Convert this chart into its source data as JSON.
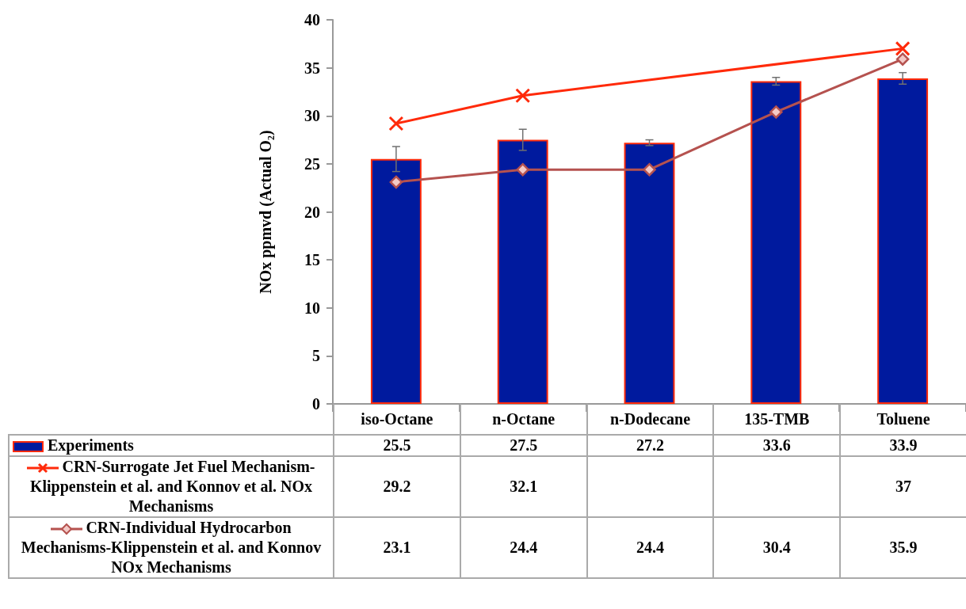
{
  "chart_data": {
    "type": "bar",
    "ylabel": "NOx ppmvd (Actual O₂)",
    "categories": [
      "iso-Octane",
      "n-Octane",
      "n-Dodecane",
      "135-TMB",
      "Toluene"
    ],
    "series": [
      {
        "name": "Experiments",
        "color": "#001a9e",
        "values": [
          25.5,
          27.5,
          27.2,
          33.6,
          33.9
        ],
        "errors": [
          1.3,
          1.1,
          0.3,
          0.4,
          0.6
        ]
      },
      {
        "name": "CRN-Surrogate Jet Fuel Mechanism-Klippenstein et al. and Konnov et al. NOx Mechanisms",
        "type": "line",
        "color": "#ff2a0a",
        "marker": "cross",
        "values": [
          29.2,
          32.1,
          null,
          null,
          37
        ]
      },
      {
        "name": "CRN-Individual Hydrocarbon Mechanisms-Klippenstein et al. and Konnov NOx Mechanisms",
        "type": "line",
        "color": "#b5524f",
        "marker": "diamond",
        "values": [
          23.1,
          24.4,
          24.4,
          30.4,
          35.9
        ]
      }
    ],
    "ylim": [
      0,
      40
    ],
    "yticks": [
      0,
      5,
      10,
      15,
      20,
      25,
      30,
      35,
      40
    ],
    "grid": false,
    "legend": "bottom",
    "data_labels": true
  }
}
